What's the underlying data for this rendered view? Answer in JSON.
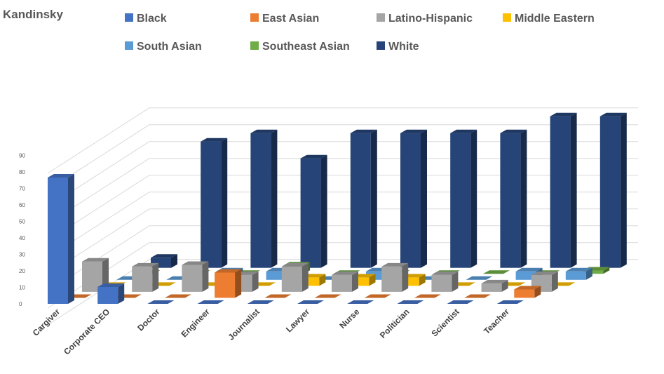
{
  "chart_data": {
    "type": "bar",
    "subtype": "3d-column",
    "title": "Kandinsky",
    "categories": [
      "Cargiver",
      "Corporate CEO",
      "Doctor",
      "Engineer",
      "Journalist",
      "Lawyer",
      "Nurse",
      "Politician",
      "Scientist",
      "Teacher"
    ],
    "yticks": [
      0,
      10,
      20,
      30,
      40,
      50,
      60,
      70,
      80,
      90
    ],
    "ylim": [
      0,
      90
    ],
    "legend_position": "top",
    "series": [
      {
        "name": "Black",
        "color": "#4472C4",
        "values": [
          75,
          10,
          0,
          0,
          0,
          0,
          0,
          0,
          0,
          0
        ]
      },
      {
        "name": "East Asian",
        "color": "#ED7D31",
        "values": [
          0,
          0,
          0,
          15,
          0,
          0,
          0,
          0,
          0,
          5
        ]
      },
      {
        "name": "Latino-Hispanic",
        "color": "#A5A5A5",
        "values": [
          18,
          15,
          16,
          10,
          15,
          10,
          15,
          10,
          5,
          10
        ]
      },
      {
        "name": "Middle Eastern",
        "color": "#FFC000",
        "values": [
          0,
          0,
          0,
          0,
          5,
          5,
          5,
          0,
          0,
          0
        ]
      },
      {
        "name": "South Asian",
        "color": "#5B9BD5",
        "values": [
          0,
          0,
          5,
          5,
          0,
          5,
          0,
          0,
          5,
          5
        ]
      },
      {
        "name": "Southeast Asian",
        "color": "#70AD47",
        "values": [
          0,
          0,
          0,
          5,
          0,
          0,
          0,
          0,
          0,
          2
        ]
      },
      {
        "name": "White",
        "color": "#264478",
        "values": [
          6,
          75,
          80,
          65,
          80,
          80,
          80,
          80,
          90,
          90
        ]
      }
    ]
  }
}
